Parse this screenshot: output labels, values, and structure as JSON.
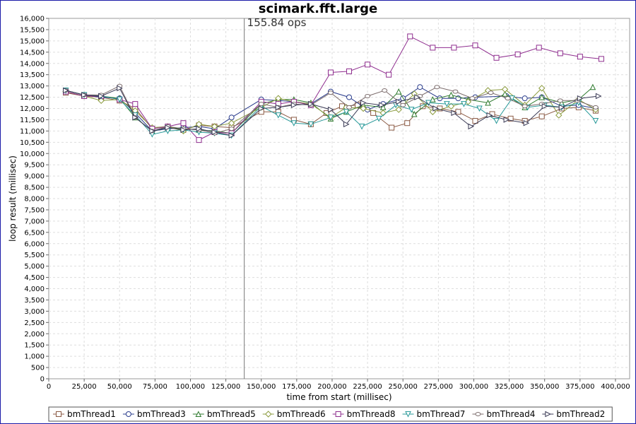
{
  "chart_data": {
    "type": "line",
    "title": "scimark.fft.large",
    "xlabel": "time from start (millisec)",
    "ylabel": "loop result (millisec)",
    "xlim": [
      0,
      410000
    ],
    "ylim": [
      0,
      16000
    ],
    "x_ticks": [
      0,
      25000,
      50000,
      75000,
      100000,
      125000,
      150000,
      175000,
      200000,
      225000,
      250000,
      275000,
      300000,
      325000,
      350000,
      375000,
      400000
    ],
    "x_tick_labels": [
      "0",
      "25,000",
      "50,000",
      "75,000",
      "100,000",
      "125,000",
      "150,000",
      "175,000",
      "200,000",
      "225,000",
      "250,000",
      "275,000",
      "300,000",
      "325,000",
      "350,000",
      "375,000",
      "400,000"
    ],
    "y_ticks": [
      0,
      500,
      1000,
      1500,
      2000,
      2500,
      3000,
      3500,
      4000,
      4500,
      5000,
      5500,
      6000,
      6500,
      7000,
      7500,
      8000,
      8500,
      9000,
      9500,
      10000,
      10500,
      11000,
      11500,
      12000,
      12500,
      13000,
      13500,
      14000,
      14500,
      15000,
      15500,
      16000
    ],
    "y_tick_labels": [
      "0",
      "500",
      "1,000",
      "1,500",
      "2,000",
      "2,500",
      "3,000",
      "3,500",
      "4,000",
      "4,500",
      "5,000",
      "5,500",
      "6,000",
      "6,500",
      "7,000",
      "7,500",
      "8,000",
      "8,500",
      "9,000",
      "9,500",
      "10,000",
      "10,500",
      "11,000",
      "11,500",
      "12,000",
      "12,500",
      "13,000",
      "13,500",
      "14,000",
      "14,500",
      "15,000",
      "15,500",
      "16,000"
    ],
    "grid": true,
    "legend_position": "bottom",
    "marker_line": {
      "x": 138000,
      "label": "155.84 ops"
    },
    "series": [
      {
        "name": "bmThread1",
        "color": "#8b5a44",
        "marker": "square",
        "points": [
          [
            12000,
            12700
          ],
          [
            25000,
            12550
          ],
          [
            37000,
            12500
          ],
          [
            50000,
            12350
          ],
          [
            61000,
            12000
          ],
          [
            73000,
            11100
          ],
          [
            84000,
            11200
          ],
          [
            95000,
            11050
          ],
          [
            106000,
            11250
          ],
          [
            117000,
            11200
          ],
          [
            129000,
            11150
          ],
          [
            150000,
            11850
          ],
          [
            162000,
            11850
          ],
          [
            173000,
            11500
          ],
          [
            185000,
            11300
          ],
          [
            196000,
            11800
          ],
          [
            207000,
            12100
          ],
          [
            218000,
            12150
          ],
          [
            229000,
            11800
          ],
          [
            242000,
            11150
          ],
          [
            253000,
            11350
          ],
          [
            264000,
            12100
          ],
          [
            276000,
            12000
          ],
          [
            289000,
            11850
          ],
          [
            301000,
            11450
          ],
          [
            313000,
            11750
          ],
          [
            326000,
            11550
          ],
          [
            336000,
            11450
          ],
          [
            348000,
            11650
          ],
          [
            362000,
            12000
          ],
          [
            374000,
            12050
          ],
          [
            386000,
            11900
          ]
        ]
      },
      {
        "name": "bmThread3",
        "color": "#2a3c8c",
        "marker": "circle",
        "points": [
          [
            12000,
            12800
          ],
          [
            25000,
            12600
          ],
          [
            37000,
            12500
          ],
          [
            50000,
            12450
          ],
          [
            61000,
            11800
          ],
          [
            73000,
            11000
          ],
          [
            84000,
            11100
          ],
          [
            95000,
            11150
          ],
          [
            106000,
            11200
          ],
          [
            117000,
            11100
          ],
          [
            129000,
            11600
          ],
          [
            150000,
            12400
          ],
          [
            162000,
            12350
          ],
          [
            173000,
            12300
          ],
          [
            185000,
            12200
          ],
          [
            199000,
            12750
          ],
          [
            212000,
            12500
          ],
          [
            225000,
            11950
          ],
          [
            236000,
            12200
          ],
          [
            250000,
            12450
          ],
          [
            262000,
            12950
          ],
          [
            276000,
            12450
          ],
          [
            289000,
            12450
          ],
          [
            301000,
            12500
          ],
          [
            323000,
            12550
          ],
          [
            336000,
            12450
          ],
          [
            348000,
            12500
          ],
          [
            362000,
            12100
          ],
          [
            374000,
            12150
          ],
          [
            386000,
            12000
          ]
        ]
      },
      {
        "name": "bmThread5",
        "color": "#2f7a2f",
        "marker": "triangle-up",
        "points": [
          [
            12000,
            12800
          ],
          [
            25000,
            12600
          ],
          [
            37000,
            12550
          ],
          [
            50000,
            12450
          ],
          [
            61000,
            11600
          ],
          [
            73000,
            11000
          ],
          [
            84000,
            11150
          ],
          [
            95000,
            11100
          ],
          [
            106000,
            11050
          ],
          [
            117000,
            11000
          ],
          [
            129000,
            10900
          ],
          [
            150000,
            12200
          ],
          [
            162000,
            12400
          ],
          [
            173000,
            12400
          ],
          [
            185000,
            12250
          ],
          [
            199000,
            11550
          ],
          [
            210000,
            11850
          ],
          [
            222000,
            12150
          ],
          [
            236000,
            12050
          ],
          [
            247000,
            12750
          ],
          [
            258000,
            11750
          ],
          [
            271000,
            12400
          ],
          [
            284000,
            12600
          ],
          [
            296000,
            12400
          ],
          [
            310000,
            12250
          ],
          [
            322000,
            12650
          ],
          [
            336000,
            12050
          ],
          [
            348000,
            12500
          ],
          [
            362000,
            12250
          ],
          [
            374000,
            12400
          ],
          [
            384000,
            12950
          ]
        ]
      },
      {
        "name": "bmThread6",
        "color": "#8a9a3c",
        "marker": "diamond",
        "points": [
          [
            12000,
            12750
          ],
          [
            25000,
            12550
          ],
          [
            37000,
            12350
          ],
          [
            50000,
            12400
          ],
          [
            61000,
            11900
          ],
          [
            73000,
            11150
          ],
          [
            84000,
            11200
          ],
          [
            95000,
            11000
          ],
          [
            106000,
            11300
          ],
          [
            117000,
            11200
          ],
          [
            129000,
            11350
          ],
          [
            150000,
            12050
          ],
          [
            162000,
            12450
          ],
          [
            173000,
            12300
          ],
          [
            185000,
            12200
          ],
          [
            199000,
            11600
          ],
          [
            210000,
            12050
          ],
          [
            222000,
            12000
          ],
          [
            236000,
            11800
          ],
          [
            247000,
            11950
          ],
          [
            258000,
            12650
          ],
          [
            271000,
            11850
          ],
          [
            284000,
            12100
          ],
          [
            296000,
            12300
          ],
          [
            310000,
            12800
          ],
          [
            322000,
            12850
          ],
          [
            336000,
            12150
          ],
          [
            348000,
            12900
          ],
          [
            360000,
            11700
          ],
          [
            374000,
            12400
          ],
          [
            386000,
            11950
          ]
        ]
      },
      {
        "name": "bmThread8",
        "color": "#8e2d8e",
        "marker": "square",
        "points": [
          [
            12000,
            12750
          ],
          [
            25000,
            12550
          ],
          [
            37000,
            12550
          ],
          [
            50000,
            12400
          ],
          [
            61000,
            12200
          ],
          [
            73000,
            11100
          ],
          [
            84000,
            11200
          ],
          [
            95000,
            11350
          ],
          [
            106000,
            10600
          ],
          [
            117000,
            10950
          ],
          [
            129000,
            10900
          ],
          [
            150000,
            12300
          ],
          [
            162000,
            12200
          ],
          [
            173000,
            12300
          ],
          [
            185000,
            12150
          ],
          [
            199000,
            13600
          ],
          [
            212000,
            13650
          ],
          [
            225000,
            13950
          ],
          [
            240000,
            13500
          ],
          [
            255000,
            15200
          ],
          [
            271000,
            14700
          ],
          [
            286000,
            14700
          ],
          [
            301000,
            14800
          ],
          [
            316000,
            14250
          ],
          [
            331000,
            14400
          ],
          [
            346000,
            14700
          ],
          [
            361000,
            14450
          ],
          [
            375000,
            14300
          ],
          [
            390000,
            14200
          ]
        ]
      },
      {
        "name": "bmThread7",
        "color": "#2a9a9a",
        "marker": "triangle-down",
        "points": [
          [
            12000,
            12800
          ],
          [
            25000,
            12600
          ],
          [
            37000,
            12550
          ],
          [
            50000,
            12400
          ],
          [
            61000,
            11700
          ],
          [
            73000,
            10850
          ],
          [
            84000,
            11000
          ],
          [
            95000,
            11050
          ],
          [
            106000,
            10950
          ],
          [
            117000,
            10900
          ],
          [
            129000,
            10800
          ],
          [
            150000,
            12100
          ],
          [
            162000,
            11700
          ],
          [
            173000,
            11350
          ],
          [
            185000,
            11300
          ],
          [
            199000,
            11600
          ],
          [
            210000,
            11850
          ],
          [
            221000,
            11200
          ],
          [
            233000,
            11550
          ],
          [
            245000,
            12150
          ],
          [
            256000,
            11950
          ],
          [
            268000,
            12250
          ],
          [
            281000,
            12200
          ],
          [
            293000,
            12200
          ],
          [
            304000,
            12000
          ],
          [
            316000,
            11450
          ],
          [
            327000,
            12450
          ],
          [
            338000,
            12050
          ],
          [
            350000,
            12150
          ],
          [
            362000,
            12050
          ],
          [
            374000,
            12250
          ],
          [
            386000,
            11450
          ]
        ]
      },
      {
        "name": "bmThread4",
        "color": "#7a6a6a",
        "marker": "circle-small",
        "points": [
          [
            12000,
            12800
          ],
          [
            25000,
            12600
          ],
          [
            37000,
            12600
          ],
          [
            50000,
            13000
          ],
          [
            61000,
            11600
          ],
          [
            73000,
            11000
          ],
          [
            84000,
            11200
          ],
          [
            95000,
            11100
          ],
          [
            106000,
            11050
          ],
          [
            117000,
            10900
          ],
          [
            129000,
            11100
          ],
          [
            150000,
            12200
          ],
          [
            162000,
            12050
          ],
          [
            173000,
            12200
          ],
          [
            185000,
            12150
          ],
          [
            199000,
            12700
          ],
          [
            212000,
            12050
          ],
          [
            225000,
            12550
          ],
          [
            237000,
            12800
          ],
          [
            250000,
            12150
          ],
          [
            262000,
            12550
          ],
          [
            274000,
            12950
          ],
          [
            287000,
            12750
          ],
          [
            299000,
            12450
          ],
          [
            312000,
            12700
          ],
          [
            324000,
            12450
          ],
          [
            336000,
            12100
          ],
          [
            348000,
            12200
          ],
          [
            361000,
            12350
          ],
          [
            373000,
            12350
          ],
          [
            386000,
            12050
          ]
        ]
      },
      {
        "name": "bmThread2",
        "color": "#3a3a55",
        "marker": "triangle-right",
        "points": [
          [
            12000,
            12800
          ],
          [
            25000,
            12600
          ],
          [
            37000,
            12550
          ],
          [
            50000,
            12900
          ],
          [
            61000,
            11600
          ],
          [
            73000,
            11000
          ],
          [
            84000,
            11150
          ],
          [
            95000,
            11050
          ],
          [
            106000,
            11100
          ],
          [
            117000,
            10950
          ],
          [
            129000,
            10800
          ],
          [
            150000,
            12000
          ],
          [
            162000,
            12050
          ],
          [
            173000,
            12150
          ],
          [
            185000,
            12200
          ],
          [
            199000,
            11950
          ],
          [
            210000,
            11300
          ],
          [
            222000,
            12250
          ],
          [
            235000,
            12150
          ],
          [
            247000,
            12300
          ],
          [
            260000,
            12500
          ],
          [
            273000,
            12000
          ],
          [
            286000,
            11800
          ],
          [
            298000,
            11200
          ],
          [
            311000,
            11700
          ],
          [
            323000,
            11500
          ],
          [
            337000,
            11350
          ],
          [
            350000,
            12100
          ],
          [
            362000,
            12050
          ],
          [
            375000,
            12450
          ],
          [
            388000,
            12550
          ]
        ]
      }
    ]
  }
}
